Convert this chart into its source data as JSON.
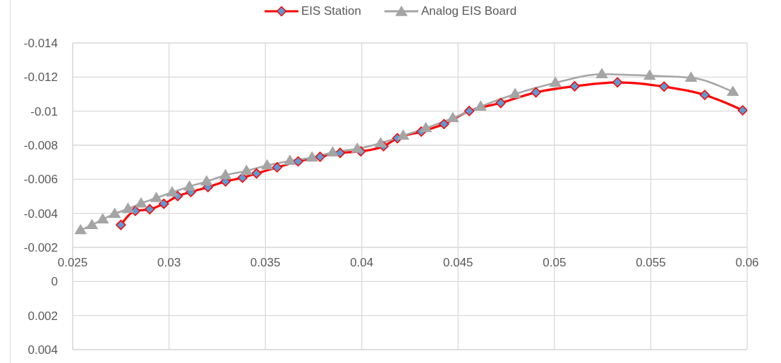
{
  "chart_data": {
    "type": "line",
    "legend": "top",
    "grid": true,
    "xlim": [
      0.025,
      0.06
    ],
    "xticks": [
      0.025,
      0.03,
      0.035,
      0.04,
      0.045,
      0.05,
      0.055,
      0.06
    ],
    "ylim": [
      0.004,
      -0.014
    ],
    "yticks": [
      -0.014,
      -0.012,
      -0.01,
      -0.008,
      -0.006,
      -0.004,
      -0.002,
      0,
      0.002,
      0.004
    ],
    "series": [
      {
        "name": "EIS Station",
        "color": "#ff0000",
        "marker": "diamond",
        "colors": [
          "#5b9bd5",
          "#5b9bd5",
          "#5b9bd5",
          "#5b9bd5",
          "#5b9bd5",
          "#5b9bd5",
          "#5b9bd5",
          "#5b9bd5",
          "#5b9bd5",
          "#5b9bd5",
          "#5b9bd5",
          "#5b9bd5",
          "#5b9bd5",
          "#5b9bd5",
          "#5b9bd5",
          "#5b9bd5",
          "#5b9bd5",
          "#5b9bd5",
          "#5b9bd5",
          "#5b9bd5",
          "#5b9bd5",
          "#5b9bd5",
          "#5b9bd5",
          "#5b9bd5",
          "#5b9bd5",
          "#5b9bd5",
          "#5b9bd5"
        ],
        "x": [
          0.0275,
          0.02825,
          0.029,
          0.02973,
          0.03045,
          0.03113,
          0.03202,
          0.03293,
          0.03381,
          0.03454,
          0.03561,
          0.0367,
          0.03784,
          0.03888,
          0.03995,
          0.04113,
          0.04185,
          0.04309,
          0.04427,
          0.04558,
          0.04721,
          0.04904,
          0.05105,
          0.05327,
          0.05569,
          0.0578,
          0.05977
        ],
        "values": [
          -0.00332,
          -0.00414,
          -0.00424,
          -0.00456,
          -0.00501,
          -0.00525,
          -0.00554,
          -0.00587,
          -0.00609,
          -0.00634,
          -0.0067,
          -0.00705,
          -0.00732,
          -0.00755,
          -0.00764,
          -0.00794,
          -0.00841,
          -0.0088,
          -0.00924,
          -0.01001,
          -0.01048,
          -0.0111,
          -0.01146,
          -0.01169,
          -0.01144,
          -0.01095,
          -0.01005
        ]
      },
      {
        "name": "Analog EIS Board",
        "color": "#a5a5a5",
        "marker": "triangle",
        "x": [
          0.02541,
          0.026,
          0.02656,
          0.02718,
          0.02787,
          0.02855,
          0.02934,
          0.03016,
          0.03106,
          0.03195,
          0.03293,
          0.03402,
          0.03509,
          0.03627,
          0.03742,
          0.03849,
          0.03977,
          0.04098,
          0.04215,
          0.04333,
          0.04473,
          0.04617,
          0.04796,
          0.05005,
          0.05246,
          0.05494,
          0.05709,
          0.05926
        ],
        "values": [
          -0.00301,
          -0.00331,
          -0.00365,
          -0.00397,
          -0.00427,
          -0.00458,
          -0.0049,
          -0.00523,
          -0.00557,
          -0.00587,
          -0.00624,
          -0.00649,
          -0.00681,
          -0.00708,
          -0.00728,
          -0.00758,
          -0.00779,
          -0.00811,
          -0.00856,
          -0.009,
          -0.00959,
          -0.01027,
          -0.011,
          -0.01166,
          -0.01217,
          -0.01208,
          -0.01196,
          -0.01113
        ]
      }
    ]
  }
}
